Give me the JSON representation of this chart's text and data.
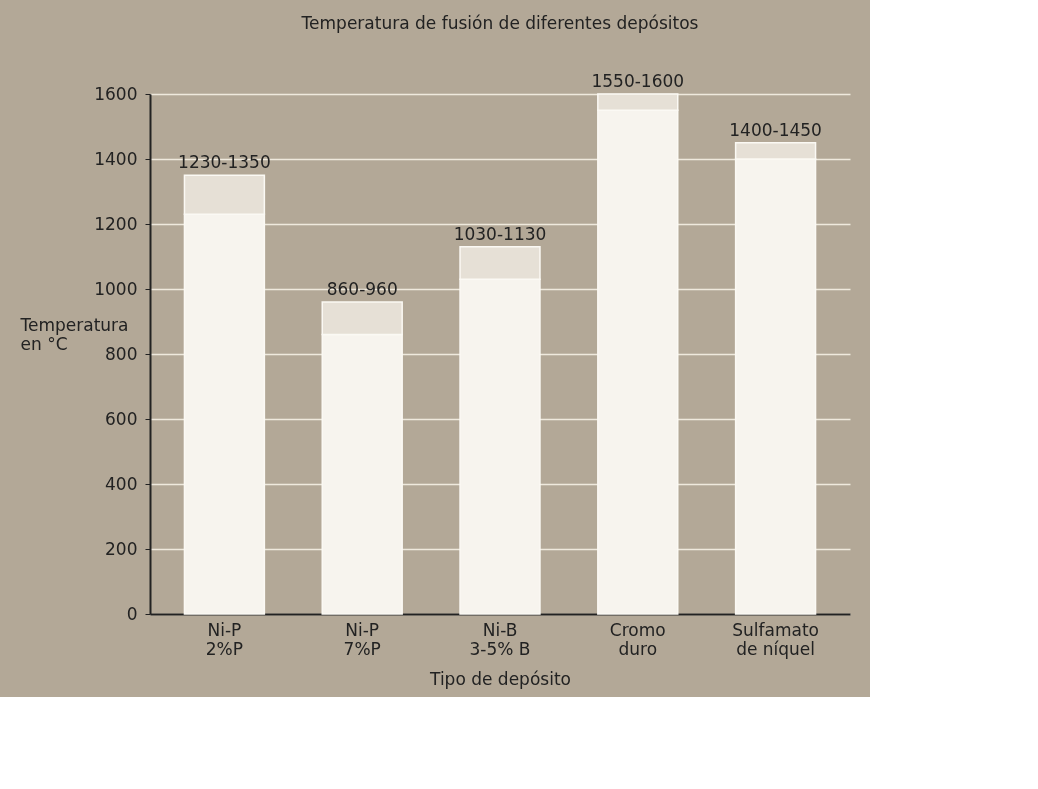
{
  "chart_data": {
    "type": "bar",
    "title": "Temperatura de fusión de diferentes depósitos",
    "xlabel": "Tipo de depósito",
    "ylabel": "Temperatura\nen °C",
    "categories": [
      "Ni-P\n2%P",
      "Ni-P\n7%P",
      "Ni-B\n3-5% B",
      "Cromo\nduro",
      "Sulfamato\nde níquel"
    ],
    "stacked": true,
    "series": [
      {
        "color": "#f7f4ee",
        "values": [
          1230,
          860,
          1030,
          1550,
          1400
        ]
      },
      {
        "color": "#e6e0d6",
        "values": [
          120,
          100,
          100,
          50,
          50
        ],
        "value_labels": [
          "1230-1350",
          "860-960",
          "1030-1130",
          "1550-1600",
          "1400-1450"
        ]
      }
    ],
    "ylim": [
      0,
      1600
    ],
    "yticks": [
      0,
      200,
      400,
      600,
      800,
      1000,
      1200,
      1400,
      1600
    ],
    "grid": "y"
  }
}
